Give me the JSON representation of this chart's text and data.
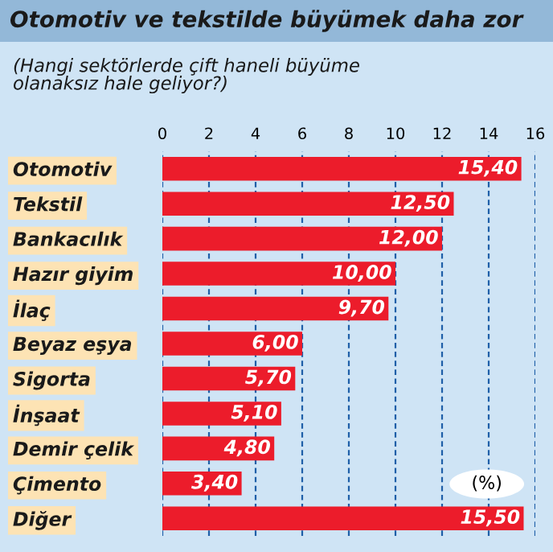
{
  "chart_data": {
    "type": "bar",
    "orientation": "horizontal",
    "title": "Otomotiv ve tekstilde büyümek daha zor",
    "subtitle": "(Hangi sektörlerde çift haneli büyüme\nolanaksız hale geliyor?)",
    "categories": [
      "Otomotiv",
      "Tekstil",
      "Bankacılık",
      "Hazır giyim",
      "İlaç",
      "Beyaz eşya",
      "Sigorta",
      "İnşaat",
      "Demir çelik",
      "Çimento",
      "Diğer"
    ],
    "values": [
      15.4,
      12.5,
      12.0,
      10.0,
      9.7,
      6.0,
      5.7,
      5.1,
      4.8,
      3.4,
      15.5
    ],
    "value_labels": [
      "15,40",
      "12,50",
      "12,00",
      "10,00",
      "9,70",
      "6,00",
      "5,70",
      "5,10",
      "4,80",
      "3,40",
      "15,50"
    ],
    "color": "#ec1c2b",
    "xlim": [
      0,
      16
    ],
    "xticks": [
      0,
      2,
      4,
      6,
      8,
      10,
      12,
      14,
      16
    ],
    "grid": "x",
    "annotations": [
      "(%)"
    ]
  }
}
